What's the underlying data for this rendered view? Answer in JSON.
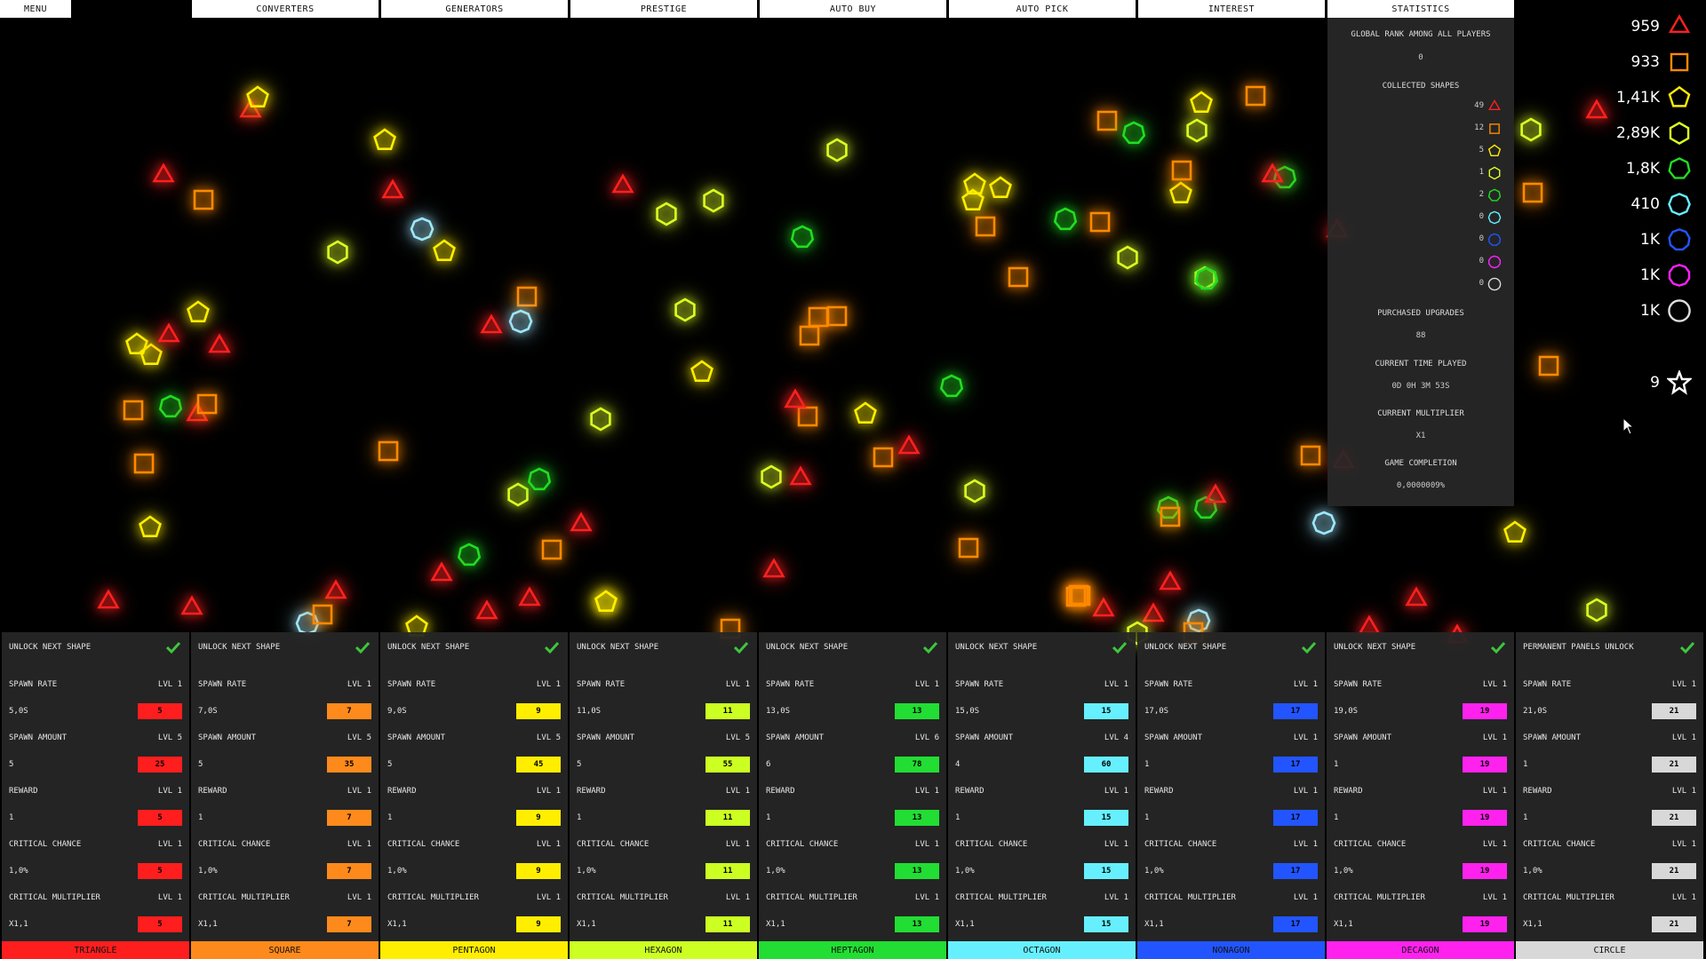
{
  "topbar": {
    "menu_label": "MENU",
    "tabs": [
      "CONVERTERS",
      "GENERATORS",
      "PRESTIGE",
      "AUTO BUY",
      "AUTO PICK",
      "INTEREST",
      "STATISTICS"
    ]
  },
  "statistics": {
    "global_rank_label": "GLOBAL RANK AMONG ALL PLAYERS",
    "global_rank_value": "0",
    "collected_shapes_label": "COLLECTED SHAPES",
    "collected": [
      {
        "count": "49",
        "shape": "triangle-icon",
        "color": "#ff2020"
      },
      {
        "count": "12",
        "shape": "square-icon",
        "color": "#ff8a00"
      },
      {
        "count": "5",
        "shape": "pentagon-icon",
        "color": "#ffee00"
      },
      {
        "count": "1",
        "shape": "hexagon-icon",
        "color": "#ddff22"
      },
      {
        "count": "2",
        "shape": "heptagon-icon",
        "color": "#22dd22"
      },
      {
        "count": "0",
        "shape": "octagon-icon",
        "color": "#66f0ff"
      },
      {
        "count": "0",
        "shape": "nonagon-icon",
        "color": "#2255ff"
      },
      {
        "count": "0",
        "shape": "decagon-icon",
        "color": "#ff22ff"
      },
      {
        "count": "0",
        "shape": "circle-icon",
        "color": "#dddddd"
      }
    ],
    "purchased_upgrades_label": "PURCHASED UPGRADES",
    "purchased_upgrades_value": "88",
    "time_played_label": "CURRENT TIME PLAYED",
    "time_played_value": "0D 0H 3M 53S",
    "multiplier_label": "CURRENT MULTIPLIER",
    "multiplier_value": "X1",
    "completion_label": "GAME COMPLETION",
    "completion_value": "0,0000009%"
  },
  "currencies": [
    {
      "value": "959",
      "shape": "triangle-icon",
      "color": "#ff2020"
    },
    {
      "value": "933",
      "shape": "square-icon",
      "color": "#ff8a00"
    },
    {
      "value": "1,41K",
      "shape": "pentagon-icon",
      "color": "#ffee00"
    },
    {
      "value": "2,89K",
      "shape": "hexagon-icon",
      "color": "#ddff22"
    },
    {
      "value": "1,8K",
      "shape": "heptagon-icon",
      "color": "#22dd22"
    },
    {
      "value": "410",
      "shape": "octagon-icon",
      "color": "#66f0ff"
    },
    {
      "value": "1K",
      "shape": "nonagon-icon",
      "color": "#2255ff"
    },
    {
      "value": "1K",
      "shape": "decagon-icon",
      "color": "#ff22ff"
    },
    {
      "value": "1K",
      "shape": "circle-icon",
      "color": "#dddddd"
    }
  ],
  "stars": {
    "value": "9",
    "shape": "star-icon"
  },
  "panels": [
    {
      "name": "TRIANGLE",
      "color": "#ff1e1e",
      "unlock_label": "UNLOCK NEXT SHAPE",
      "spawn_rate": {
        "label": "SPAWN RATE",
        "lvl": "LVL 1",
        "value": "5,0s",
        "cost": "5"
      },
      "spawn_amount": {
        "label": "SPAWN AMOUNT",
        "lvl": "LVL 5",
        "value": "5",
        "cost": "25"
      },
      "reward": {
        "label": "REWARD",
        "lvl": "LVL 1",
        "value": "1",
        "cost": "5"
      },
      "crit_chance": {
        "label": "CRITICAL CHANCE",
        "lvl": "LVL 1",
        "value": "1,0%",
        "cost": "5"
      },
      "crit_mult": {
        "label": "CRITICAL MULTIPLIER",
        "lvl": "LVL 1",
        "value": "x1,1",
        "cost": "5"
      }
    },
    {
      "name": "SQUARE",
      "color": "#ff8a1c",
      "unlock_label": "UNLOCK NEXT SHAPE",
      "spawn_rate": {
        "label": "SPAWN RATE",
        "lvl": "LVL 1",
        "value": "7,0s",
        "cost": "7"
      },
      "spawn_amount": {
        "label": "SPAWN AMOUNT",
        "lvl": "LVL 5",
        "value": "5",
        "cost": "35"
      },
      "reward": {
        "label": "REWARD",
        "lvl": "LVL 1",
        "value": "1",
        "cost": "7"
      },
      "crit_chance": {
        "label": "CRITICAL CHANCE",
        "lvl": "LVL 1",
        "value": "1,0%",
        "cost": "7"
      },
      "crit_mult": {
        "label": "CRITICAL MULTIPLIER",
        "lvl": "LVL 1",
        "value": "x1,1",
        "cost": "7"
      }
    },
    {
      "name": "PENTAGON",
      "color": "#ffee00",
      "unlock_label": "UNLOCK NEXT SHAPE",
      "spawn_rate": {
        "label": "SPAWN RATE",
        "lvl": "LVL 1",
        "value": "9,0s",
        "cost": "9"
      },
      "spawn_amount": {
        "label": "SPAWN AMOUNT",
        "lvl": "LVL 5",
        "value": "5",
        "cost": "45"
      },
      "reward": {
        "label": "REWARD",
        "lvl": "LVL 1",
        "value": "1",
        "cost": "9"
      },
      "crit_chance": {
        "label": "CRITICAL CHANCE",
        "lvl": "LVL 1",
        "value": "1,0%",
        "cost": "9"
      },
      "crit_mult": {
        "label": "CRITICAL MULTIPLIER",
        "lvl": "LVL 1",
        "value": "x1,1",
        "cost": "9"
      }
    },
    {
      "name": "HEXAGON",
      "color": "#ccff22",
      "unlock_label": "UNLOCK NEXT SHAPE",
      "spawn_rate": {
        "label": "SPAWN RATE",
        "lvl": "LVL 1",
        "value": "11,0s",
        "cost": "11"
      },
      "spawn_amount": {
        "label": "SPAWN AMOUNT",
        "lvl": "LVL 5",
        "value": "5",
        "cost": "55"
      },
      "reward": {
        "label": "REWARD",
        "lvl": "LVL 1",
        "value": "1",
        "cost": "11"
      },
      "crit_chance": {
        "label": "CRITICAL CHANCE",
        "lvl": "LVL 1",
        "value": "1,0%",
        "cost": "11"
      },
      "crit_mult": {
        "label": "CRITICAL MULTIPLIER",
        "lvl": "LVL 1",
        "value": "x1,1",
        "cost": "11"
      }
    },
    {
      "name": "HEPTAGON",
      "color": "#22dd33",
      "unlock_label": "UNLOCK NEXT SHAPE",
      "spawn_rate": {
        "label": "SPAWN RATE",
        "lvl": "LVL 1",
        "value": "13,0s",
        "cost": "13"
      },
      "spawn_amount": {
        "label": "SPAWN AMOUNT",
        "lvl": "LVL 6",
        "value": "6",
        "cost": "78"
      },
      "reward": {
        "label": "REWARD",
        "lvl": "LVL 1",
        "value": "1",
        "cost": "13"
      },
      "crit_chance": {
        "label": "CRITICAL CHANCE",
        "lvl": "LVL 1",
        "value": "1,0%",
        "cost": "13"
      },
      "crit_mult": {
        "label": "CRITICAL MULTIPLIER",
        "lvl": "LVL 1",
        "value": "x1,1",
        "cost": "13"
      }
    },
    {
      "name": "OCTAGON",
      "color": "#66f0ff",
      "unlock_label": "UNLOCK NEXT SHAPE",
      "spawn_rate": {
        "label": "SPAWN RATE",
        "lvl": "LVL 1",
        "value": "15,0s",
        "cost": "15"
      },
      "spawn_amount": {
        "label": "SPAWN AMOUNT",
        "lvl": "LVL 4",
        "value": "4",
        "cost": "60"
      },
      "reward": {
        "label": "REWARD",
        "lvl": "LVL 1",
        "value": "1",
        "cost": "15"
      },
      "crit_chance": {
        "label": "CRITICAL CHANCE",
        "lvl": "LVL 1",
        "value": "1,0%",
        "cost": "15"
      },
      "crit_mult": {
        "label": "CRITICAL MULTIPLIER",
        "lvl": "LVL 1",
        "value": "x1,1",
        "cost": "15"
      }
    },
    {
      "name": "NONAGON",
      "color": "#2255ff",
      "unlock_label": "UNLOCK NEXT SHAPE",
      "spawn_rate": {
        "label": "SPAWN RATE",
        "lvl": "LVL 1",
        "value": "17,0s",
        "cost": "17"
      },
      "spawn_amount": {
        "label": "SPAWN AMOUNT",
        "lvl": "LVL 1",
        "value": "1",
        "cost": "17"
      },
      "reward": {
        "label": "REWARD",
        "lvl": "LVL 1",
        "value": "1",
        "cost": "17"
      },
      "crit_chance": {
        "label": "CRITICAL CHANCE",
        "lvl": "LVL 1",
        "value": "1,0%",
        "cost": "17"
      },
      "crit_mult": {
        "label": "CRITICAL MULTIPLIER",
        "lvl": "LVL 1",
        "value": "x1,1",
        "cost": "17"
      }
    },
    {
      "name": "DECAGON",
      "color": "#ff22ee",
      "unlock_label": "UNLOCK NEXT SHAPE",
      "spawn_rate": {
        "label": "SPAWN RATE",
        "lvl": "LVL 1",
        "value": "19,0s",
        "cost": "19"
      },
      "spawn_amount": {
        "label": "SPAWN AMOUNT",
        "lvl": "LVL 1",
        "value": "1",
        "cost": "19"
      },
      "reward": {
        "label": "REWARD",
        "lvl": "LVL 1",
        "value": "1",
        "cost": "19"
      },
      "crit_chance": {
        "label": "CRITICAL CHANCE",
        "lvl": "LVL 1",
        "value": "1,0%",
        "cost": "19"
      },
      "crit_mult": {
        "label": "CRITICAL MULTIPLIER",
        "lvl": "LVL 1",
        "value": "x1,1",
        "cost": "19"
      }
    },
    {
      "name": "CIRCLE",
      "color": "#d8d8d8",
      "unlock_label": "PERMANENT PANELS UNLOCK",
      "spawn_rate": {
        "label": "SPAWN RATE",
        "lvl": "LVL 1",
        "value": "21,0s",
        "cost": "21"
      },
      "spawn_amount": {
        "label": "SPAWN AMOUNT",
        "lvl": "LVL 1",
        "value": "1",
        "cost": "21"
      },
      "reward": {
        "label": "REWARD",
        "lvl": "LVL 1",
        "value": "1",
        "cost": "21"
      },
      "crit_chance": {
        "label": "CRITICAL CHANCE",
        "lvl": "LVL 1",
        "value": "1,0%",
        "cost": "21"
      },
      "crit_mult": {
        "label": "CRITICAL MULTIPLIER",
        "lvl": "LVL 1",
        "value": "x1,1",
        "cost": "21"
      }
    }
  ],
  "field_shapes": [
    {
      "type": "triangle-icon",
      "color": "#ff2020"
    },
    {
      "type": "square-icon",
      "color": "#ff8a00"
    },
    {
      "type": "pentagon-icon",
      "color": "#ffee00"
    },
    {
      "type": "hexagon-icon",
      "color": "#ddff22"
    },
    {
      "type": "heptagon-icon",
      "color": "#22dd22"
    },
    {
      "type": "octagon-icon",
      "color": "#9fe8ff"
    }
  ]
}
